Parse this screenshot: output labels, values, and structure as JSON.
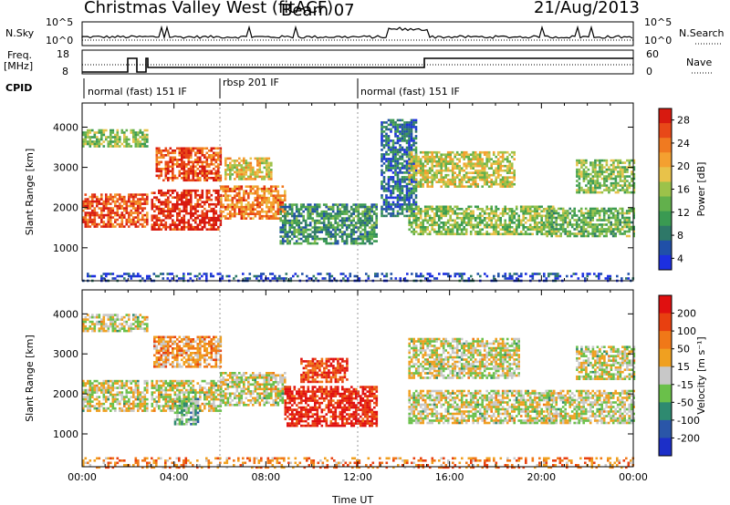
{
  "header": {
    "station": "Christmas Valley West (fitACF)",
    "beam": "Beam 07",
    "date": "21/Aug/2013"
  },
  "left_labels": {
    "nsky": "N.Sky",
    "freq": "Freq.",
    "freq_unit": "[MHz]",
    "cpid": "CPID"
  },
  "right_labels": {
    "nsearch": "N.Search",
    "nave": "Nave"
  },
  "noise_axis": {
    "left_ticks": [
      "10^5",
      "10^0"
    ],
    "right_ticks": [
      "10^5",
      "10^0"
    ]
  },
  "freq_axis": {
    "left_ticks": [
      "18",
      "8"
    ],
    "right_ticks": [
      "60",
      "0"
    ]
  },
  "cpid_segments": [
    {
      "label": "normal (fast) 151 IF",
      "start_h": 0.0
    },
    {
      "label": "rbsp 201 IF",
      "start_h": 6.0
    },
    {
      "label": "normal (fast) 151 IF",
      "start_h": 12.0
    }
  ],
  "chart_data": [
    {
      "type": "heatmap",
      "title": "Power",
      "xlabel": "",
      "ylabel": "Slant Range [km]",
      "xlim": [
        0,
        24
      ],
      "ylim": [
        180,
        4600
      ],
      "yticks": [
        "1000",
        "2000",
        "3000",
        "4000"
      ],
      "colorbar": {
        "label": "Power [dB]",
        "ticks": [
          "4",
          "8",
          "12",
          "16",
          "20",
          "24",
          "28"
        ],
        "colors": [
          "#1c2fe0",
          "#2050a8",
          "#2e7868",
          "#3a9a52",
          "#62b04c",
          "#9cc24a",
          "#e8c24a",
          "#f4a030",
          "#f07a20",
          "#e84818",
          "#d81a10"
        ]
      },
      "bands": [
        {
          "t0": 0.0,
          "t1": 2.8,
          "r0": 1550,
          "r1": 2350,
          "level": 0.85
        },
        {
          "t0": 0.0,
          "t1": 2.8,
          "r0": 3500,
          "r1": 3950,
          "level": 0.45
        },
        {
          "t0": 3.0,
          "t1": 6.0,
          "r0": 1450,
          "r1": 2450,
          "level": 0.95
        },
        {
          "t0": 3.2,
          "t1": 6.0,
          "r0": 2700,
          "r1": 3500,
          "level": 0.85
        },
        {
          "t0": 6.0,
          "t1": 8.8,
          "r0": 1700,
          "r1": 2550,
          "level": 0.75
        },
        {
          "t0": 6.2,
          "t1": 8.2,
          "r0": 2700,
          "r1": 3250,
          "level": 0.6
        },
        {
          "t0": 8.6,
          "t1": 12.8,
          "r0": 1100,
          "r1": 2100,
          "level": 0.3
        },
        {
          "t0": 13.0,
          "t1": 14.5,
          "r0": 1800,
          "r1": 4200,
          "level": 0.2
        },
        {
          "t0": 14.2,
          "t1": 20.5,
          "r0": 1350,
          "r1": 2050,
          "level": 0.45
        },
        {
          "t0": 14.2,
          "t1": 18.8,
          "r0": 2500,
          "r1": 3400,
          "level": 0.55
        },
        {
          "t0": 20.2,
          "t1": 24.0,
          "r0": 1300,
          "r1": 2000,
          "level": 0.4
        },
        {
          "t0": 21.5,
          "t1": 24.0,
          "r0": 2400,
          "r1": 3200,
          "level": 0.45
        },
        {
          "t0": 0.0,
          "t1": 24.0,
          "r0": 180,
          "r1": 380,
          "level": 0.1
        }
      ]
    },
    {
      "type": "heatmap",
      "title": "Velocity",
      "xlabel": "Time UT",
      "ylabel": "Slant Range [km]",
      "xlim": [
        0,
        24
      ],
      "ylim": [
        180,
        4600
      ],
      "xticks": [
        "00:00",
        "04:00",
        "08:00",
        "12:00",
        "16:00",
        "20:00",
        "00:00"
      ],
      "yticks": [
        "1000",
        "2000",
        "3000",
        "4000"
      ],
      "colorbar": {
        "label": "Velocity [m s⁻¹]",
        "ticks": [
          "200",
          "100",
          "50",
          "15",
          "-15",
          "-50",
          "-100",
          "-200"
        ],
        "colors": [
          "#1c2fc8",
          "#2a56a8",
          "#2e8a70",
          "#6ac04a",
          "#c8c8c8",
          "#f0a020",
          "#f07818",
          "#e84010",
          "#e01010"
        ]
      },
      "bands": [
        {
          "t0": 0.0,
          "t1": 2.8,
          "r0": 1600,
          "r1": 2350,
          "level": 0.5
        },
        {
          "t0": 0.0,
          "t1": 2.8,
          "r0": 3550,
          "r1": 4000,
          "level": 0.5
        },
        {
          "t0": 3.0,
          "t1": 6.0,
          "r0": 1600,
          "r1": 2350,
          "level": 0.5
        },
        {
          "t0": 3.1,
          "t1": 6.0,
          "r0": 2700,
          "r1": 3450,
          "level": 0.65
        },
        {
          "t0": 4.0,
          "t1": 5.0,
          "r0": 1250,
          "r1": 1900,
          "level": 0.38
        },
        {
          "t0": 6.0,
          "t1": 8.8,
          "r0": 1700,
          "r1": 2550,
          "level": 0.5
        },
        {
          "t0": 8.8,
          "t1": 12.8,
          "r0": 1200,
          "r1": 2200,
          "level": 0.92
        },
        {
          "t0": 9.5,
          "t1": 11.5,
          "r0": 2300,
          "r1": 2900,
          "level": 0.85
        },
        {
          "t0": 14.2,
          "t1": 20.5,
          "r0": 1300,
          "r1": 2100,
          "level": 0.5
        },
        {
          "t0": 14.2,
          "t1": 19.0,
          "r0": 2400,
          "r1": 3400,
          "level": 0.5
        },
        {
          "t0": 20.2,
          "t1": 24.0,
          "r0": 1300,
          "r1": 2100,
          "level": 0.5
        },
        {
          "t0": 21.5,
          "t1": 24.0,
          "r0": 2400,
          "r1": 3200,
          "level": 0.5
        },
        {
          "t0": 0.0,
          "t1": 24.0,
          "r0": 180,
          "r1": 420,
          "level": 0.7
        }
      ]
    }
  ]
}
